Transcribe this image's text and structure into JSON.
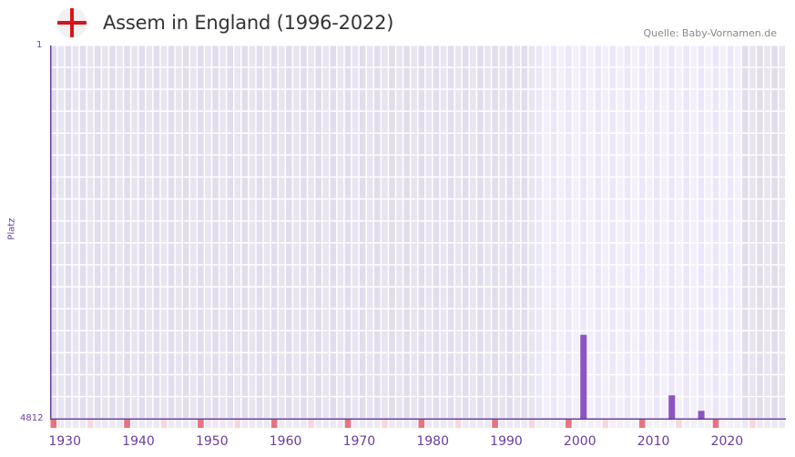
{
  "header": {
    "title": "Assem in England (1996-2022)",
    "source": "Quelle: Baby-Vornamen.de",
    "flag_icon": "england-flag-icon"
  },
  "axes": {
    "y_title": "Platz",
    "y_top_label": "1",
    "y_bottom_label": "4812",
    "x_ticks": [
      "1930",
      "1940",
      "1950",
      "1960",
      "1970",
      "1980",
      "1990",
      "2000",
      "2010",
      "2020"
    ]
  },
  "colors": {
    "bar": "#8b55c4",
    "axis": "#6a3d9a",
    "decade_marker": "#e57380",
    "half_decade_marker": "#f5d7de",
    "grid_dark": "#e4e0ee",
    "grid_light": "#f0ecfa",
    "flag_red": "#d7141a"
  },
  "chart_data": {
    "type": "bar",
    "title": "Assem in England (1996-2022)",
    "xlabel": "",
    "ylabel": "Platz",
    "y_inverted": true,
    "ylim": [
      4812,
      1
    ],
    "xlim": [
      1928,
      2028
    ],
    "highlight_range": [
      1994,
      2021
    ],
    "x_tick_labels": [
      "1930",
      "1940",
      "1950",
      "1960",
      "1970",
      "1980",
      "1990",
      "2000",
      "2010",
      "2020"
    ],
    "grid": true,
    "legend": null,
    "categories": [
      "2000",
      "2012",
      "2016"
    ],
    "values": [
      3730,
      4510,
      4710
    ],
    "series": [
      {
        "name": "Platz",
        "x": [
          2000,
          2012,
          2016
        ],
        "values": [
          3730,
          4510,
          4710
        ]
      }
    ]
  }
}
